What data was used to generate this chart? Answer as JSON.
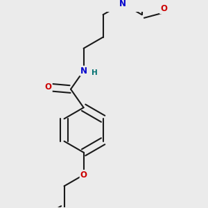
{
  "bg_color": "#ebebeb",
  "bond_color": "#1a1a1a",
  "bond_width": 1.5,
  "atom_colors": {
    "N": "#0000cc",
    "O": "#cc0000",
    "H": "#007070",
    "C": "#1a1a1a"
  },
  "font_size_atom": 8.5,
  "font_size_H": 7.5
}
